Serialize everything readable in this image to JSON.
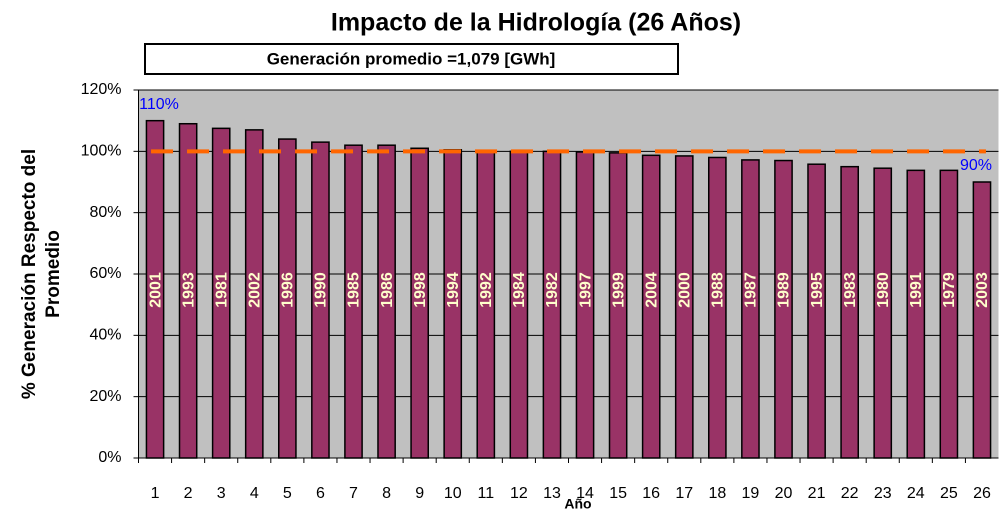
{
  "chart_data": {
    "type": "bar",
    "title": "Impacto de la Hidrología (26 Años)",
    "subtitle": "Generación promedio =1,079 [GWh]",
    "xlabel": "Año",
    "ylabel": [
      "% Generación Respecto del",
      "Promedio"
    ],
    "categories": [
      "1",
      "2",
      "3",
      "4",
      "5",
      "6",
      "7",
      "8",
      "9",
      "10",
      "11",
      "12",
      "13",
      "14",
      "15",
      "16",
      "17",
      "18",
      "19",
      "20",
      "21",
      "22",
      "23",
      "24",
      "25",
      "26"
    ],
    "values": [
      110,
      109,
      107.5,
      107,
      104,
      103,
      102,
      102,
      101,
      100.5,
      100.3,
      100,
      100,
      99.8,
      99.5,
      98.7,
      98.5,
      98,
      97.2,
      97,
      95.8,
      95,
      94.5,
      93.8,
      93.8,
      90
    ],
    "value_labels": [
      "110%",
      null,
      null,
      null,
      null,
      null,
      null,
      null,
      null,
      null,
      null,
      null,
      null,
      null,
      null,
      null,
      null,
      null,
      null,
      null,
      null,
      null,
      null,
      null,
      null,
      "90%"
    ],
    "year_labels": [
      "2001",
      "1993",
      "1981",
      "2002",
      "1996",
      "1990",
      "1985",
      "1986",
      "1998",
      "1994",
      "1992",
      "1984",
      "1982",
      "1997",
      "1999",
      "2004",
      "2000",
      "1988",
      "1987",
      "1989",
      "1995",
      "1983",
      "1980",
      "1991",
      "1979",
      "2003"
    ],
    "color": "#993366",
    "reference_line": 100,
    "reference_color": "#ff6600",
    "ylim": [
      0,
      120
    ],
    "yticks": [
      {
        "value": 0,
        "label": "0%"
      },
      {
        "value": 20,
        "label": "20%"
      },
      {
        "value": 40,
        "label": "40%"
      },
      {
        "value": 60,
        "label": "60%"
      },
      {
        "value": 80,
        "label": "80%"
      },
      {
        "value": 100,
        "label": "100%"
      },
      {
        "value": 120,
        "label": "120%"
      }
    ],
    "grid": true
  }
}
